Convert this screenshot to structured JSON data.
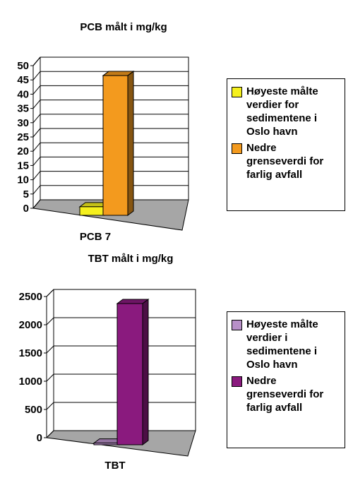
{
  "chart_data": [
    {
      "type": "bar",
      "title": "PCB målt i mg/kg",
      "categories": [
        "PCB 7"
      ],
      "series": [
        {
          "name": "Høyeste målte verdier for sedimentene i Oslo havn",
          "values": [
            3
          ],
          "color": "#f5f01e"
        },
        {
          "name": "Nedre grenseverdi for farlig avfall",
          "values": [
            49
          ],
          "color": "#f39a1e"
        }
      ],
      "y_ticks": [
        "0",
        "5",
        "10",
        "15",
        "20",
        "25",
        "30",
        "35",
        "40",
        "45",
        "50"
      ],
      "ylim": [
        0,
        50
      ],
      "grid": true,
      "legend": "right",
      "style": "3d"
    },
    {
      "type": "bar",
      "title": "TBT målt i mg/kg",
      "categories": [
        "TBT"
      ],
      "series": [
        {
          "name": "Høyeste målte verdier i sedimentene i Oslo havn",
          "values": [
            30
          ],
          "color": "#b890c8"
        },
        {
          "name": "Nedre grenseverdi for farlig avfall",
          "values": [
            2500
          ],
          "color": "#8a1a7e"
        }
      ],
      "y_ticks": [
        "0",
        "500",
        "1000",
        "1500",
        "2000",
        "2500"
      ],
      "ylim": [
        0,
        2500
      ],
      "grid": true,
      "legend": "right",
      "style": "3d"
    }
  ]
}
